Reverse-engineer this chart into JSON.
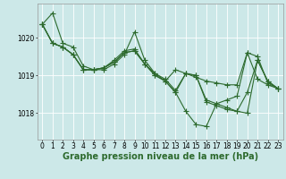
{
  "background_color": "#cce8e8",
  "grid_color": "#ffffff",
  "line_color": "#2d6a2d",
  "marker": "+",
  "markersize": 4,
  "linewidth": 0.8,
  "xlabel": "Graphe pression niveau de la mer (hPa)",
  "xlabel_fontsize": 7,
  "xlim": [
    -0.5,
    23.5
  ],
  "ylim": [
    1017.3,
    1020.9
  ],
  "yticks": [
    1018,
    1019,
    1020
  ],
  "xticks": [
    0,
    1,
    2,
    3,
    4,
    5,
    6,
    7,
    8,
    9,
    10,
    11,
    12,
    13,
    14,
    15,
    16,
    17,
    18,
    19,
    20,
    21,
    22,
    23
  ],
  "tick_fontsize": 5.5,
  "series": [
    [
      1020.35,
      1020.65,
      1019.85,
      1019.75,
      1019.25,
      1019.15,
      1019.15,
      1019.3,
      1019.55,
      1020.15,
      1019.4,
      1019.05,
      1018.85,
      1019.15,
      1019.05,
      1018.95,
      1018.85,
      1018.8,
      1018.75,
      1018.75,
      1019.6,
      1019.5,
      1018.8,
      1018.65
    ],
    [
      1020.35,
      1019.85,
      1019.75,
      1019.55,
      1019.15,
      1019.15,
      1019.2,
      1019.35,
      1019.6,
      1019.65,
      1019.3,
      1019.0,
      1018.85,
      1018.55,
      1018.05,
      1017.7,
      1017.65,
      1018.25,
      1018.35,
      1018.45,
      1019.6,
      1018.9,
      1018.75,
      1018.65
    ],
    [
      1020.35,
      1019.85,
      1019.75,
      1019.55,
      1019.15,
      1019.15,
      1019.2,
      1019.35,
      1019.6,
      1019.65,
      1019.3,
      1019.0,
      1018.85,
      1018.55,
      1019.05,
      1019.0,
      1018.3,
      1018.2,
      1018.1,
      1018.05,
      1018.0,
      1019.4,
      1018.85,
      1018.65
    ],
    [
      1020.35,
      1019.85,
      1019.75,
      1019.55,
      1019.15,
      1019.15,
      1019.2,
      1019.4,
      1019.65,
      1019.7,
      1019.3,
      1019.05,
      1018.9,
      1018.6,
      1019.05,
      1019.0,
      1018.35,
      1018.25,
      1018.15,
      1018.05,
      1018.55,
      1019.4,
      1018.85,
      1018.65
    ]
  ]
}
